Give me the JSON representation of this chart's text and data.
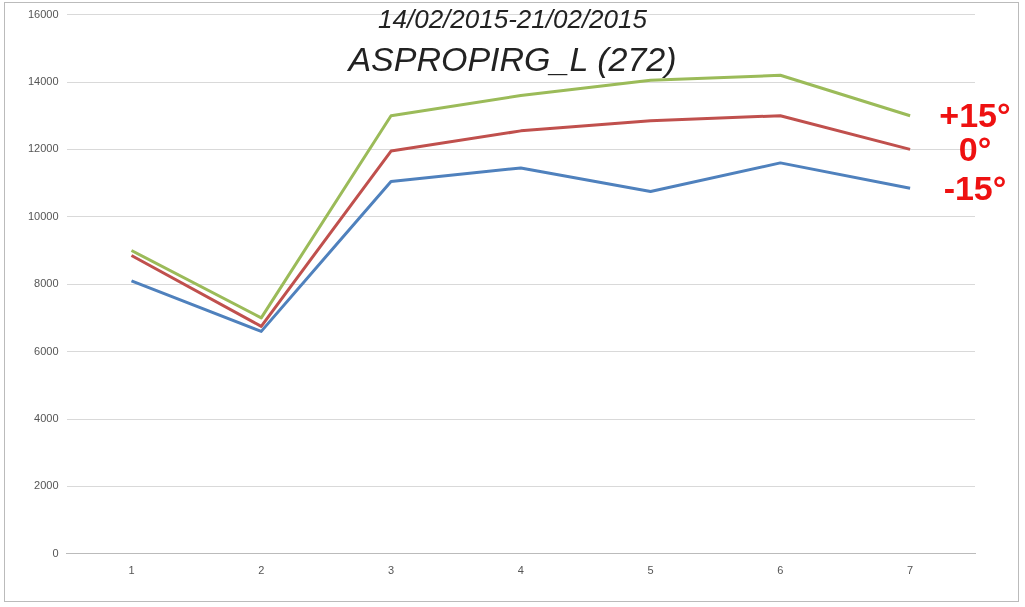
{
  "chart_data": {
    "type": "line",
    "title": "14/02/2015-21/02/2015",
    "subtitle": "ASPROPIRG_L (272)",
    "categories": [
      "1",
      "2",
      "3",
      "4",
      "5",
      "6",
      "7"
    ],
    "series": [
      {
        "name": "+15°",
        "color": "#9bbb59",
        "values": [
          9000,
          7000,
          13000,
          13600,
          14050,
          14200,
          13000
        ]
      },
      {
        "name": "0°",
        "color": "#c0504d",
        "values": [
          8850,
          6750,
          11950,
          12550,
          12850,
          13000,
          12000
        ]
      },
      {
        "name": "-15°",
        "color": "#4f81bd",
        "values": [
          8100,
          6600,
          11050,
          11450,
          10750,
          11600,
          10850
        ]
      }
    ],
    "ylim": [
      0,
      16000
    ],
    "yticks": [
      0,
      2000,
      4000,
      6000,
      8000,
      10000,
      12000,
      14000,
      16000
    ],
    "grid": "y",
    "legend": false,
    "marker": "none",
    "line_style": "solid"
  }
}
